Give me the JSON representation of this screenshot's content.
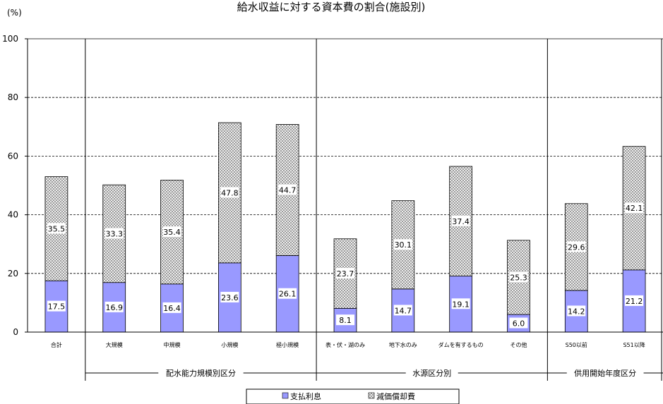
{
  "chart_data": {
    "type": "bar",
    "stacked": true,
    "title": "給水収益に対する資本費の割合(施設別)",
    "ylabel": "(%)",
    "ylim": [
      0,
      100
    ],
    "yticks": [
      0,
      20,
      40,
      60,
      80,
      100
    ],
    "categories": [
      "合計",
      "大規模",
      "中規模",
      "小規模",
      "極小規模",
      "表・伏・湖のみ",
      "地下水のみ",
      "ダムを有するもの",
      "その他",
      "S50以前",
      "S51以降"
    ],
    "groups": [
      {
        "label": "",
        "categories": [
          "合計"
        ]
      },
      {
        "label": "配水能力規模別区分",
        "categories": [
          "大規模",
          "中規模",
          "小規模",
          "極小規模"
        ]
      },
      {
        "label": "水源区分別",
        "categories": [
          "表・伏・湖のみ",
          "地下水のみ",
          "ダムを有するもの",
          "その他"
        ]
      },
      {
        "label": "供用開始年度区分",
        "categories": [
          "S50以前",
          "S51以降"
        ]
      }
    ],
    "series": [
      {
        "name": "支払利息",
        "values": [
          17.5,
          16.9,
          16.4,
          23.6,
          26.1,
          8.1,
          14.7,
          19.1,
          6.0,
          14.2,
          21.2
        ],
        "color": "#9999ff"
      },
      {
        "name": "減価償却費",
        "values": [
          35.5,
          33.3,
          35.4,
          47.8,
          44.7,
          23.7,
          30.1,
          37.4,
          25.3,
          29.6,
          42.1
        ],
        "pattern": "crosshatch"
      }
    ],
    "grid": true,
    "legend": "bottom"
  }
}
